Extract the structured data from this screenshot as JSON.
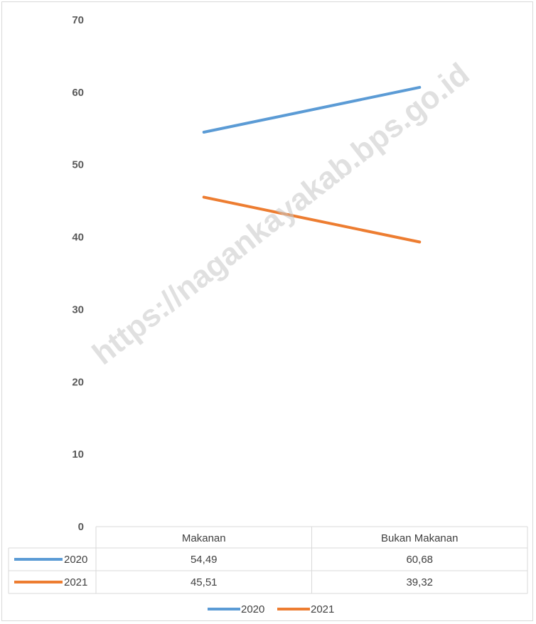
{
  "chart_data": {
    "type": "line",
    "categories": [
      "Makanan",
      "Bukan Makanan"
    ],
    "series": [
      {
        "name": "2020",
        "values": [
          54.49,
          60.68
        ],
        "display_values": [
          "54,49",
          "60,68"
        ],
        "color": "#5b9bd5"
      },
      {
        "name": "2021",
        "values": [
          45.51,
          39.32
        ],
        "display_values": [
          "45,51",
          "39,32"
        ],
        "color": "#ed7d31"
      }
    ],
    "ylim": [
      0,
      70
    ],
    "yticks": [
      0,
      10,
      20,
      30,
      40,
      50,
      60,
      70
    ],
    "grid": false,
    "legend": "bottom",
    "data_table": true
  },
  "watermark": "https://nagankayakab.bps.go.id"
}
